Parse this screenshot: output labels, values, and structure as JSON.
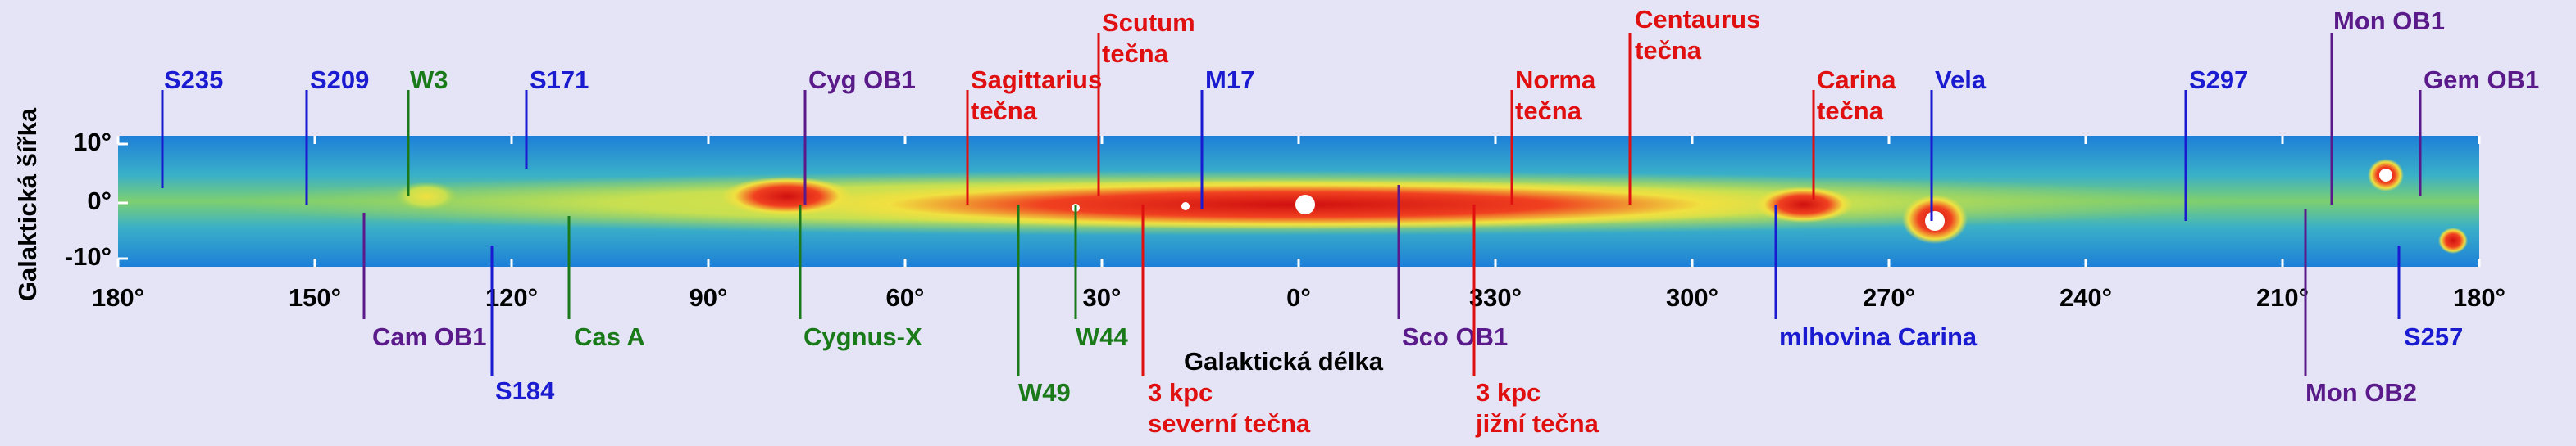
{
  "axis_titles": {
    "x": "Galaktická délka",
    "y": "Galaktická šířka"
  },
  "longitude_ticks": [
    "180°",
    "150°",
    "120°",
    "90°",
    "60°",
    "30°",
    "0°",
    "330°",
    "300°",
    "270°",
    "240°",
    "210°",
    "180°"
  ],
  "latitude_ticks": [
    "10°",
    "0°",
    "-10°"
  ],
  "labels": [
    {
      "text": [
        "S235"
      ],
      "color": "#1a1ad0"
    },
    {
      "text": [
        "S209"
      ],
      "color": "#1a1ad0"
    },
    {
      "text": [
        "W3"
      ],
      "color": "#1a7a1a"
    },
    {
      "text": [
        "S171"
      ],
      "color": "#1a1ad0"
    },
    {
      "text": [
        "Cyg OB1"
      ],
      "color": "#5a1a8a"
    },
    {
      "text": [
        "Sagittarius",
        "tečna"
      ],
      "color": "#e01010"
    },
    {
      "text": [
        "Scutum",
        "tečna"
      ],
      "color": "#e01010"
    },
    {
      "text": [
        "M17"
      ],
      "color": "#1a1ad0"
    },
    {
      "text": [
        "Norma",
        "tečna"
      ],
      "color": "#e01010"
    },
    {
      "text": [
        "Centaurus",
        "tečna"
      ],
      "color": "#e01010"
    },
    {
      "text": [
        "Carina",
        "tečna"
      ],
      "color": "#e01010"
    },
    {
      "text": [
        "Vela"
      ],
      "color": "#1a1ad0"
    },
    {
      "text": [
        "S297"
      ],
      "color": "#1a1ad0"
    },
    {
      "text": [
        "Mon OB1"
      ],
      "color": "#5a1a8a"
    },
    {
      "text": [
        "Gem OB1"
      ],
      "color": "#5a1a8a"
    },
    {
      "text": [
        "Cam OB1"
      ],
      "color": "#5a1a8a"
    },
    {
      "text": [
        "S184"
      ],
      "color": "#1a1ad0"
    },
    {
      "text": [
        "Cas A"
      ],
      "color": "#1a7a1a"
    },
    {
      "text": [
        "Cygnus-X"
      ],
      "color": "#1a7a1a"
    },
    {
      "text": [
        "W49"
      ],
      "color": "#1a7a1a"
    },
    {
      "text": [
        "W44"
      ],
      "color": "#1a7a1a"
    },
    {
      "text": [
        "3 kpc",
        "severní tečna"
      ],
      "color": "#e01010"
    },
    {
      "text": [
        "Sco OB1"
      ],
      "color": "#5a1a8a"
    },
    {
      "text": [
        "3 kpc",
        "jižní tečna"
      ],
      "color": "#e01010"
    },
    {
      "text": [
        "mlhovina Carina"
      ],
      "color": "#1a1ad0"
    },
    {
      "text": [
        "S257"
      ],
      "color": "#1a1ad0"
    },
    {
      "text": [
        "Mon OB2"
      ],
      "color": "#5a1a8a"
    }
  ]
}
